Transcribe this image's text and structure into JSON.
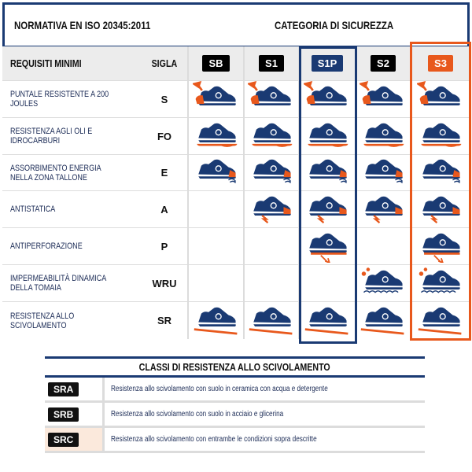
{
  "header": {
    "norm": "NORMATIVA EN ISO 20345:2011",
    "category": "CATEGORIA DI SICUREZZA"
  },
  "table": {
    "col_requirements": "REQUISITI MINIMI",
    "col_code": "SIGLA",
    "categories": [
      {
        "label": "SB",
        "color": "#000000"
      },
      {
        "label": "S1",
        "color": "#000000"
      },
      {
        "label": "S1P",
        "color": "#1a3a73"
      },
      {
        "label": "S2",
        "color": "#000000"
      },
      {
        "label": "S3",
        "color": "#e8581c"
      }
    ],
    "rows": [
      {
        "label": "PUNTALE RESISTENTE A 200 JOULES",
        "code": "S",
        "icon": "toe-cap-shoe",
        "marks": [
          true,
          true,
          true,
          true,
          true
        ]
      },
      {
        "label": "RESISTENZA AGLI OLI E IDROCARBURI",
        "code": "FO",
        "icon": "oil-resistant-sole-shoe",
        "marks": [
          true,
          true,
          true,
          true,
          true
        ]
      },
      {
        "label": "ASSORBIMENTO ENERGIA NELLA ZONA TALLONE",
        "code": "E",
        "icon": "heel-energy-shoe",
        "marks": [
          true,
          true,
          true,
          true,
          true
        ]
      },
      {
        "label": "ANTISTATICA",
        "code": "A",
        "icon": "antistatic-shoe",
        "marks": [
          false,
          true,
          true,
          true,
          true
        ]
      },
      {
        "label": "ANTIPERFORAZIONE",
        "code": "P",
        "icon": "anti-perforation-shoe",
        "marks": [
          false,
          false,
          true,
          false,
          true
        ]
      },
      {
        "label": "IMPERMEABILITÀ DINAMICA DELLA TOMAIA",
        "code": "WRU",
        "icon": "water-resistant-shoe",
        "marks": [
          false,
          false,
          false,
          true,
          true
        ]
      },
      {
        "label": "RESISTENZA ALLO SCIVOLAMENTO",
        "code": "SR",
        "icon": "slip-resistant-shoe",
        "marks": [
          true,
          true,
          true,
          true,
          true
        ]
      }
    ]
  },
  "slip": {
    "title": "CLASSI DI RESISTENZA ALLO SCIVOLAMENTO",
    "rows": [
      {
        "code": "SRA",
        "text": "Resistenza allo scivolamento con suolo in ceramica con acqua e detergente"
      },
      {
        "code": "SRB",
        "text": "Resistenza allo scivolamento con suolo in acciaio e glicerina"
      },
      {
        "code": "SRC",
        "text": "Resistenza allo scivolamento con entrambe le condizioni sopra descritte",
        "highlight": "#fbe9dc"
      }
    ]
  },
  "colors": {
    "navy": "#1a3a73",
    "orange": "#e8581c"
  }
}
